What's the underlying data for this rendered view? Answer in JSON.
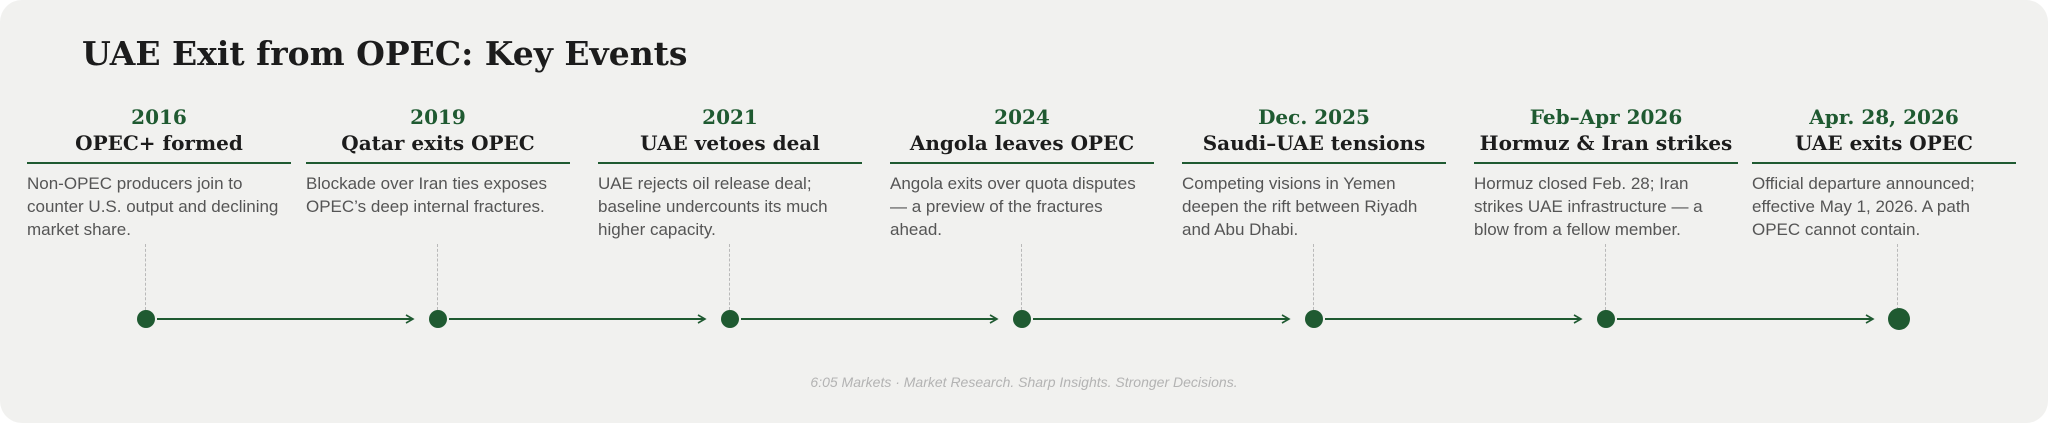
{
  "title": "UAE Exit from OPEC: Key Events",
  "events": [
    {
      "year": "2016",
      "label": "OPEC+ formed",
      "desc": "Non-OPEC producers join to counter U.S. output and declining market share."
    },
    {
      "year": "2019",
      "label": "Qatar exits OPEC",
      "desc": "Blockade over Iran ties exposes OPEC’s deep internal fractures."
    },
    {
      "year": "2021",
      "label": "UAE vetoes deal",
      "desc": "UAE rejects oil release deal; baseline undercounts its much higher capacity."
    },
    {
      "year": "2024",
      "label": "Angola leaves OPEC",
      "desc": "Angola exits over quota disputes — a preview of the fractures ahead."
    },
    {
      "year": "Dec. 2025",
      "label": "Saudi–UAE tensions",
      "desc": "Competing visions in Yemen deepen the rift between Riyadh and Abu Dhabi."
    },
    {
      "year": "Feb–Apr 2026",
      "label": "Hormuz & Iran strikes",
      "desc": "Hormuz closed Feb. 28; Iran strikes UAE infrastructure — a blow from a fellow member."
    },
    {
      "year": "Apr. 28, 2026",
      "label": "UAE exits OPEC",
      "desc": "Official departure announced; effective May 1, 2026. A path OPEC cannot contain."
    }
  ],
  "footer": "6:05 Markets · Market Research. Sharp Insights. Stronger Decisions.",
  "colors": {
    "accent": "#1f5a31",
    "background": "#f1f1ef",
    "text": "#1c1c1c",
    "muted": "#555555"
  }
}
